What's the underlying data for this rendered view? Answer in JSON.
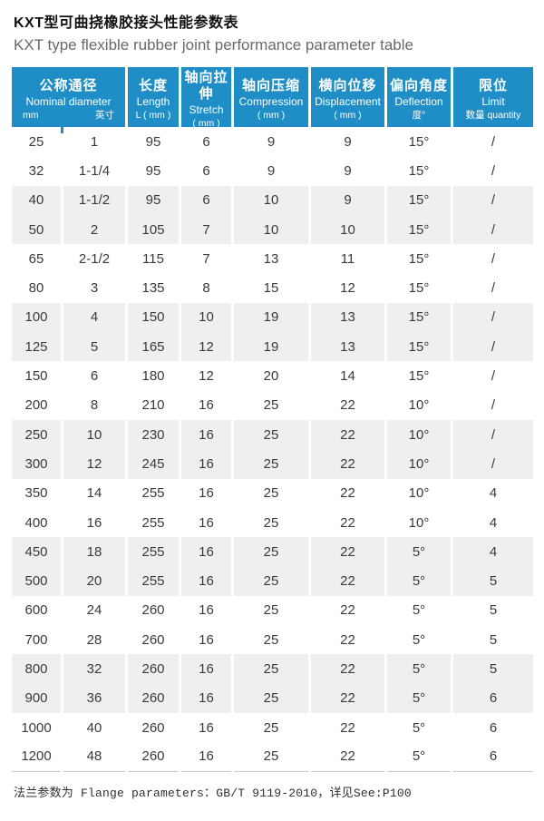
{
  "header": {
    "title_zh": "KXT型可曲挠橡胶接头性能参数表",
    "title_en": "KXT type flexible rubber joint performance parameter table"
  },
  "colors": {
    "header_bg": "#1f8dc6",
    "header_text": "#ffffff",
    "row_alt_bg": "#efefef",
    "body_text": "#3a3a3a",
    "subtitle_text": "#696969",
    "border_gray": "#c9c9c9"
  },
  "table": {
    "columns": [
      {
        "zh": "公称通径",
        "en": "Nominal diameter",
        "sub_left": "mm",
        "sub_right": "英寸"
      },
      {
        "zh": "长度",
        "en": "Length",
        "sub": "L ( mm )"
      },
      {
        "zh": "轴向拉伸",
        "en": "Stretch",
        "sub": "( mm )"
      },
      {
        "zh": "轴向压缩",
        "en": "Compression",
        "sub": "( mm )"
      },
      {
        "zh": "横向位移",
        "en": "Displacement",
        "sub": "( mm )"
      },
      {
        "zh": "偏向角度",
        "en": "Deflection",
        "sub": "度°"
      },
      {
        "zh": "限位",
        "en": "Limit",
        "sub": "数量 quantity"
      }
    ],
    "rows": [
      [
        "25",
        "1",
        "95",
        "6",
        "9",
        "9",
        "15°",
        "/"
      ],
      [
        "32",
        "1-1/4",
        "95",
        "6",
        "9",
        "9",
        "15°",
        "/"
      ],
      [
        "40",
        "1-1/2",
        "95",
        "6",
        "10",
        "9",
        "15°",
        "/"
      ],
      [
        "50",
        "2",
        "105",
        "7",
        "10",
        "10",
        "15°",
        "/"
      ],
      [
        "65",
        "2-1/2",
        "115",
        "7",
        "13",
        "11",
        "15°",
        "/"
      ],
      [
        "80",
        "3",
        "135",
        "8",
        "15",
        "12",
        "15°",
        "/"
      ],
      [
        "100",
        "4",
        "150",
        "10",
        "19",
        "13",
        "15°",
        "/"
      ],
      [
        "125",
        "5",
        "165",
        "12",
        "19",
        "13",
        "15°",
        "/"
      ],
      [
        "150",
        "6",
        "180",
        "12",
        "20",
        "14",
        "15°",
        "/"
      ],
      [
        "200",
        "8",
        "210",
        "16",
        "25",
        "22",
        "10°",
        "/"
      ],
      [
        "250",
        "10",
        "230",
        "16",
        "25",
        "22",
        "10°",
        "/"
      ],
      [
        "300",
        "12",
        "245",
        "16",
        "25",
        "22",
        "10°",
        "/"
      ],
      [
        "350",
        "14",
        "255",
        "16",
        "25",
        "22",
        "10°",
        "4"
      ],
      [
        "400",
        "16",
        "255",
        "16",
        "25",
        "22",
        "10°",
        "4"
      ],
      [
        "450",
        "18",
        "255",
        "16",
        "25",
        "22",
        "5°",
        "4"
      ],
      [
        "500",
        "20",
        "255",
        "16",
        "25",
        "22",
        "5°",
        "5"
      ],
      [
        "600",
        "24",
        "260",
        "16",
        "25",
        "22",
        "5°",
        "5"
      ],
      [
        "700",
        "28",
        "260",
        "16",
        "25",
        "22",
        "5°",
        "5"
      ],
      [
        "800",
        "32",
        "260",
        "16",
        "25",
        "22",
        "5°",
        "5"
      ],
      [
        "900",
        "36",
        "260",
        "16",
        "25",
        "22",
        "5°",
        "6"
      ],
      [
        "1000",
        "40",
        "260",
        "16",
        "25",
        "22",
        "5°",
        "6"
      ],
      [
        "1200",
        "48",
        "260",
        "16",
        "25",
        "22",
        "5°",
        "6"
      ]
    ]
  },
  "footer": {
    "text": "法兰参数为 Flange parameters：GB/T 9119-2010，详见See:P100"
  }
}
